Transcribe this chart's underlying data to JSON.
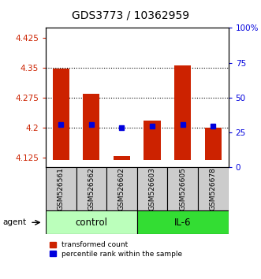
{
  "title": "GDS3773 / 10362959",
  "samples": [
    "GSM526561",
    "GSM526562",
    "GSM526602",
    "GSM526603",
    "GSM526605",
    "GSM526678"
  ],
  "red_top": [
    4.347,
    4.285,
    4.128,
    4.218,
    4.355,
    4.2
  ],
  "red_bottom": [
    4.118,
    4.118,
    4.118,
    4.118,
    4.118,
    4.118
  ],
  "blue_y": [
    4.207,
    4.207,
    4.2,
    4.204,
    4.207,
    4.203
  ],
  "ylim_left": [
    4.1,
    4.45
  ],
  "ylim_right": [
    0,
    100
  ],
  "yticks_left": [
    4.125,
    4.2,
    4.275,
    4.35,
    4.425
  ],
  "ytick_labels_left": [
    "4.125",
    "4.2",
    "4.275",
    "4.35",
    "4.425"
  ],
  "yticks_right": [
    0,
    25,
    50,
    75,
    100
  ],
  "ytick_labels_right": [
    "0",
    "25",
    "50",
    "75",
    "100%"
  ],
  "hlines": [
    4.2,
    4.275,
    4.35
  ],
  "bar_width": 0.55,
  "red_color": "#cc2200",
  "blue_color": "#0000dd",
  "control_color": "#bbffbb",
  "il6_color": "#33dd33",
  "sample_bg_color": "#cccccc",
  "legend_red": "transformed count",
  "legend_blue": "percentile rank within the sample",
  "agent_label": "agent",
  "group_labels": [
    "control",
    "IL-6"
  ],
  "title_fontsize": 10,
  "tick_label_fontsize": 7.5,
  "sample_fontsize": 6.5,
  "group_fontsize": 8.5,
  "legend_fontsize": 6.5
}
